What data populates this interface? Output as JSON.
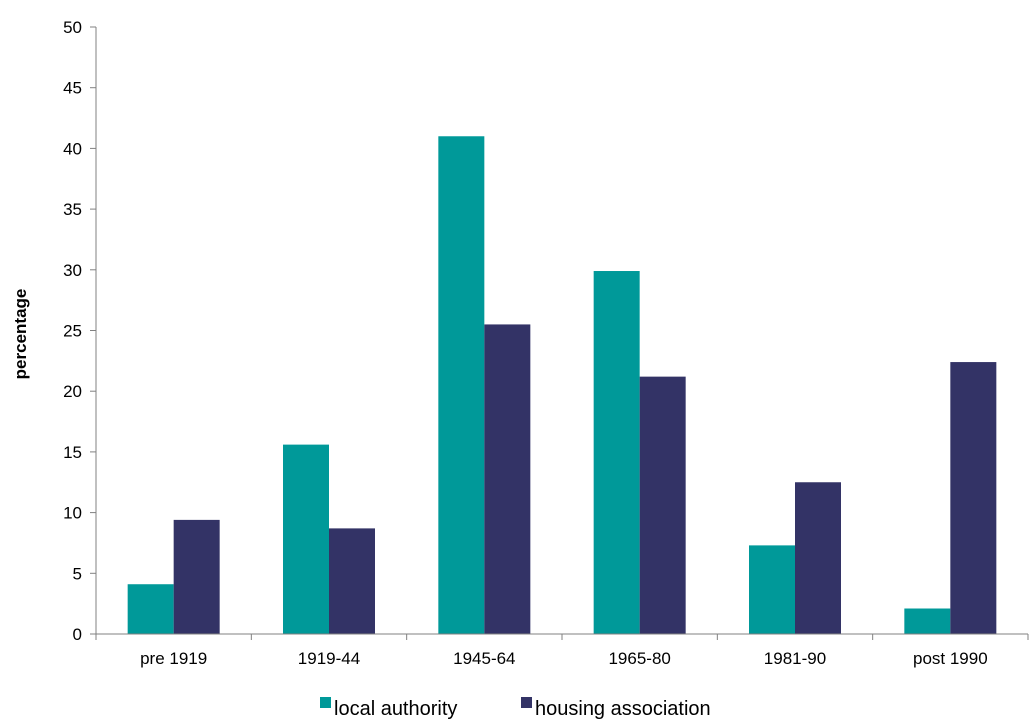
{
  "chart_data": {
    "type": "bar",
    "categories": [
      "pre 1919",
      "1919-44",
      "1945-64",
      "1965-80",
      "1981-90",
      "post 1990"
    ],
    "series": [
      {
        "name": "local authority",
        "color": "#009999",
        "values": [
          4.1,
          15.6,
          41.0,
          29.9,
          7.3,
          2.1
        ]
      },
      {
        "name": "housing association",
        "color": "#333366",
        "values": [
          9.4,
          8.7,
          25.5,
          21.2,
          12.5,
          22.4
        ]
      }
    ],
    "title": "",
    "xlabel": "",
    "ylabel": "percentage",
    "ylim": [
      0,
      50
    ],
    "yticks": [
      0,
      5,
      10,
      15,
      20,
      25,
      30,
      35,
      40,
      45,
      50
    ],
    "grid": false,
    "legend": "bottom-center"
  }
}
